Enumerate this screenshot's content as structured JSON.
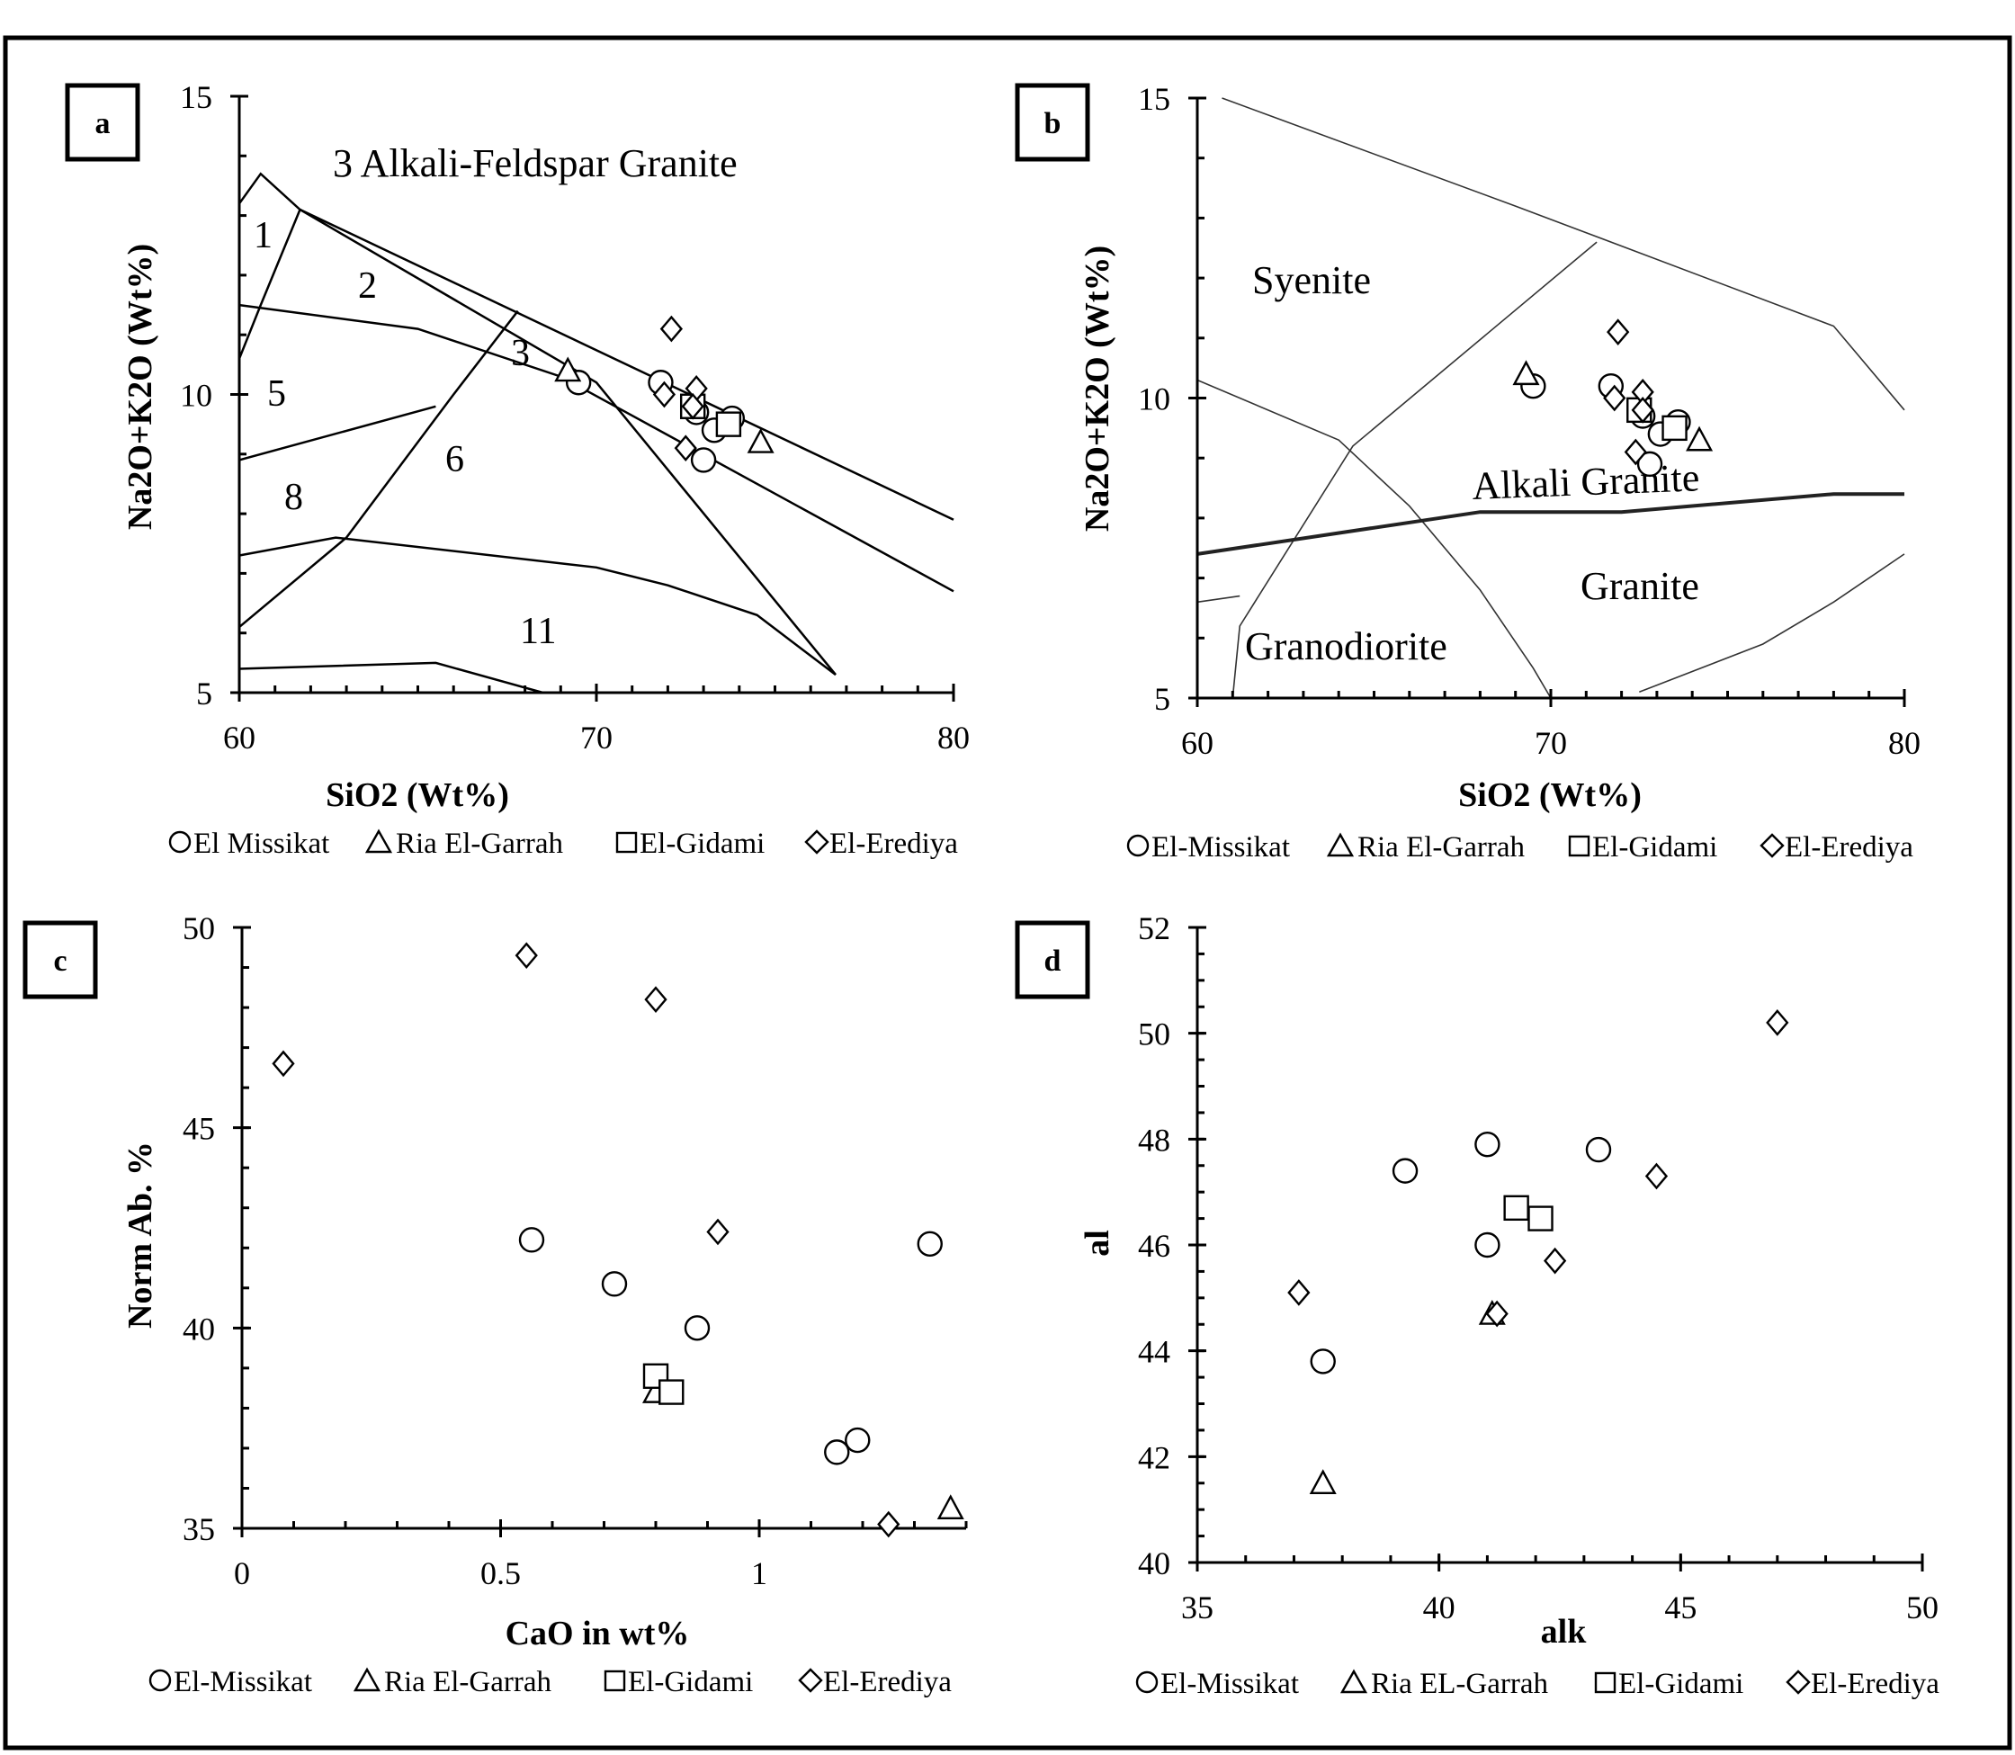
{
  "chart_data": [
    {
      "id": "a",
      "panel_label": "a",
      "type": "scatter",
      "xlabel": "SiO2 (Wt%)",
      "ylabel": "Na2O+K2O (Wt%)",
      "xlim": [
        60,
        80
      ],
      "ylim": [
        5,
        15
      ],
      "xticks": [
        "60",
        "70",
        "80"
      ],
      "yticks": [
        "5",
        "10",
        "15"
      ],
      "field_labels": [
        "3 Alkali-Feldspar Granite",
        "1",
        "2",
        "3",
        "5",
        "6",
        "8",
        "11"
      ],
      "boundaries": [
        {
          "kind": "normal",
          "points": [
            [
              60,
              13.2
            ],
            [
              60.6,
              13.7
            ],
            [
              61.7,
              13.1
            ],
            [
              70,
              10.2
            ],
            [
              76.7,
              5.3
            ]
          ]
        },
        {
          "kind": "normal",
          "points": [
            [
              61.7,
              13.1
            ],
            [
              80,
              7.9
            ]
          ]
        },
        {
          "kind": "normal",
          "points": [
            [
              61.7,
              13.1
            ],
            [
              60.6,
              11.5
            ],
            [
              60,
              10.6
            ]
          ]
        },
        {
          "kind": "normal",
          "points": [
            [
              60,
              11.5
            ],
            [
              65,
              11.1
            ],
            [
              69,
              10.3
            ],
            [
              80,
              6.7
            ]
          ]
        },
        {
          "kind": "normal",
          "points": [
            [
              60,
              8.9
            ],
            [
              65.5,
              9.8
            ]
          ]
        },
        {
          "kind": "normal",
          "points": [
            [
              67.8,
              11.4
            ],
            [
              66,
              10
            ],
            [
              63,
              7.6
            ],
            [
              60,
              6.1
            ]
          ]
        },
        {
          "kind": "normal",
          "points": [
            [
              60,
              7.3
            ],
            [
              62.7,
              7.6
            ],
            [
              70,
              7.1
            ],
            [
              72,
              6.8
            ],
            [
              74.5,
              6.3
            ],
            [
              76.7,
              5.3
            ]
          ]
        },
        {
          "kind": "normal",
          "points": [
            [
              60,
              5.4
            ],
            [
              65.5,
              5.5
            ],
            [
              68.5,
              5
            ]
          ]
        }
      ],
      "series": [
        {
          "name": "El Missikat",
          "marker": "circle",
          "points": [
            [
              69.5,
              10.2
            ],
            [
              71.8,
              10.2
            ],
            [
              72.8,
              9.7
            ],
            [
              73.3,
              9.4
            ],
            [
              73.8,
              9.6
            ],
            [
              73.0,
              8.9
            ]
          ]
        },
        {
          "name": "Ria El-Garrah",
          "marker": "triangle",
          "points": [
            [
              69.2,
              10.4
            ],
            [
              74.6,
              9.2
            ]
          ]
        },
        {
          "name": "El-Gidami",
          "marker": "square",
          "points": [
            [
              72.7,
              9.8
            ],
            [
              73.7,
              9.5
            ]
          ]
        },
        {
          "name": "El-Erediya",
          "marker": "diamond",
          "points": [
            [
              72.1,
              11.1
            ],
            [
              72.8,
              10.1
            ],
            [
              72.7,
              9.8
            ],
            [
              71.9,
              10.0
            ],
            [
              72.5,
              9.1
            ]
          ]
        }
      ],
      "legend": [
        "El Missikat",
        "Ria El-Garrah",
        "El-Gidami",
        "El-Erediya"
      ]
    },
    {
      "id": "b",
      "panel_label": "b",
      "type": "scatter",
      "xlabel": "SiO2 (Wt%)",
      "ylabel": "Na2O+K2O (Wt%)",
      "xlim": [
        60,
        80
      ],
      "ylim": [
        5,
        15
      ],
      "xticks": [
        "60",
        "70",
        "80"
      ],
      "yticks": [
        "5",
        "10",
        "15"
      ],
      "field_labels": [
        "Syenite",
        "Alkali Granite",
        "Granite",
        "Granodiorite"
      ],
      "boundaries": [
        {
          "kind": "thin",
          "points": [
            [
              60.7,
              15
            ],
            [
              69,
              13.2
            ],
            [
              78,
              11.2
            ],
            [
              80,
              9.8
            ]
          ]
        },
        {
          "kind": "thin",
          "points": [
            [
              60,
              10.3
            ],
            [
              64,
              9.3
            ],
            [
              66,
              8.2
            ],
            [
              68,
              6.8
            ],
            [
              69.5,
              5.5
            ],
            [
              70,
              5
            ]
          ]
        },
        {
          "kind": "thin",
          "points": [
            [
              71.3,
              12.6
            ],
            [
              64.4,
              9.2
            ],
            [
              62.8,
              7.7
            ],
            [
              61.2,
              6.2
            ],
            [
              61,
              5
            ]
          ]
        },
        {
          "kind": "thin",
          "points": [
            [
              60,
              6.6
            ],
            [
              61.2,
              6.7
            ]
          ]
        },
        {
          "kind": "thin",
          "points": [
            [
              72.5,
              5.1
            ],
            [
              76,
              5.9
            ],
            [
              78,
              6.6
            ],
            [
              80,
              7.4
            ]
          ]
        },
        {
          "kind": "thick",
          "points": [
            [
              60,
              7.4
            ],
            [
              68,
              8.1
            ],
            [
              72,
              8.1
            ],
            [
              78,
              8.4
            ],
            [
              80,
              8.4
            ]
          ]
        }
      ],
      "series": [
        {
          "name": "El-Missikat",
          "marker": "circle",
          "points": [
            [
              69.5,
              10.2
            ],
            [
              71.7,
              10.2
            ],
            [
              72.6,
              9.7
            ],
            [
              73.1,
              9.4
            ],
            [
              73.6,
              9.6
            ],
            [
              72.8,
              8.9
            ]
          ]
        },
        {
          "name": "Ria El-Garrah",
          "marker": "triangle",
          "points": [
            [
              69.3,
              10.4
            ],
            [
              74.2,
              9.3
            ]
          ]
        },
        {
          "name": "El-Gidami",
          "marker": "square",
          "points": [
            [
              72.5,
              9.8
            ],
            [
              73.5,
              9.5
            ]
          ]
        },
        {
          "name": "El-Erediya",
          "marker": "diamond",
          "points": [
            [
              71.9,
              11.1
            ],
            [
              72.6,
              10.1
            ],
            [
              72.6,
              9.8
            ],
            [
              71.8,
              10.0
            ],
            [
              72.4,
              9.1
            ]
          ]
        }
      ],
      "legend": [
        "El-Missikat",
        "Ria El-Garrah",
        "El-Gidami",
        "El-Erediya"
      ]
    },
    {
      "id": "c",
      "panel_label": "c",
      "type": "scatter",
      "xlabel": "CaO in wt%",
      "ylabel": "Norm Ab. %",
      "xlim": [
        0,
        1.4
      ],
      "ylim": [
        35,
        50
      ],
      "xticks": [
        {
          "v": 0,
          "t": "0"
        },
        {
          "v": 0.5,
          "t": "0.5"
        },
        {
          "v": 1,
          "t": "1"
        }
      ],
      "yticks": [
        {
          "v": 35,
          "t": "35"
        },
        {
          "v": 40,
          "t": "40"
        },
        {
          "v": 45,
          "t": "45"
        },
        {
          "v": 50,
          "t": "50"
        }
      ],
      "series": [
        {
          "name": "El-Missikat",
          "marker": "circle",
          "points": [
            [
              0.56,
              42.2
            ],
            [
              0.72,
              41.1
            ],
            [
              0.88,
              40.0
            ],
            [
              1.15,
              36.9
            ],
            [
              1.19,
              37.2
            ],
            [
              1.33,
              42.1
            ]
          ]
        },
        {
          "name": "Ria El-Garrah",
          "marker": "triangle",
          "points": [
            [
              0.8,
              38.4
            ],
            [
              1.37,
              35.5
            ]
          ]
        },
        {
          "name": "El-Gidami",
          "marker": "square",
          "points": [
            [
              0.8,
              38.8
            ],
            [
              0.83,
              38.4
            ]
          ]
        },
        {
          "name": "El-Erediya",
          "marker": "diamond",
          "points": [
            [
              0.08,
              46.6
            ],
            [
              0.55,
              49.3
            ],
            [
              0.8,
              48.2
            ],
            [
              0.92,
              42.4
            ],
            [
              1.25,
              35.1
            ]
          ]
        }
      ],
      "legend": [
        "El-Missikat",
        "Ria El-Garrah",
        "El-Gidami",
        "El-Erediya"
      ]
    },
    {
      "id": "d",
      "panel_label": "d",
      "type": "scatter",
      "xlabel": "alk",
      "ylabel": "al",
      "xlim": [
        35,
        50
      ],
      "ylim": [
        40,
        52
      ],
      "xticks": [
        {
          "v": 35,
          "t": "35"
        },
        {
          "v": 40,
          "t": "40"
        },
        {
          "v": 45,
          "t": "45"
        },
        {
          "v": 50,
          "t": "50"
        }
      ],
      "yticks": [
        {
          "v": 40,
          "t": "40"
        },
        {
          "v": 42,
          "t": "42"
        },
        {
          "v": 44,
          "t": "44"
        },
        {
          "v": 46,
          "t": "46"
        },
        {
          "v": 48,
          "t": "48"
        },
        {
          "v": 50,
          "t": "50"
        },
        {
          "v": 52,
          "t": "52"
        }
      ],
      "series": [
        {
          "name": "El-Missikat",
          "marker": "circle",
          "points": [
            [
              37.6,
              43.8
            ],
            [
              39.3,
              47.4
            ],
            [
              41.0,
              47.9
            ],
            [
              41.0,
              46.0
            ],
            [
              43.3,
              47.8
            ]
          ]
        },
        {
          "name": "Ria EL-Garrah",
          "marker": "triangle",
          "points": [
            [
              37.6,
              41.5
            ],
            [
              41.1,
              44.7
            ]
          ]
        },
        {
          "name": "El-Gidami",
          "marker": "square",
          "points": [
            [
              41.6,
              46.7
            ],
            [
              42.1,
              46.5
            ]
          ]
        },
        {
          "name": "El-Erediya",
          "marker": "diamond",
          "points": [
            [
              37.1,
              45.1
            ],
            [
              41.2,
              44.7
            ],
            [
              42.4,
              45.7
            ],
            [
              44.5,
              47.3
            ],
            [
              47.0,
              50.2
            ]
          ]
        }
      ],
      "legend": [
        "El-Missikat",
        "Ria EL-Garrah",
        "El-Gidami",
        "El-Erediya"
      ]
    }
  ]
}
